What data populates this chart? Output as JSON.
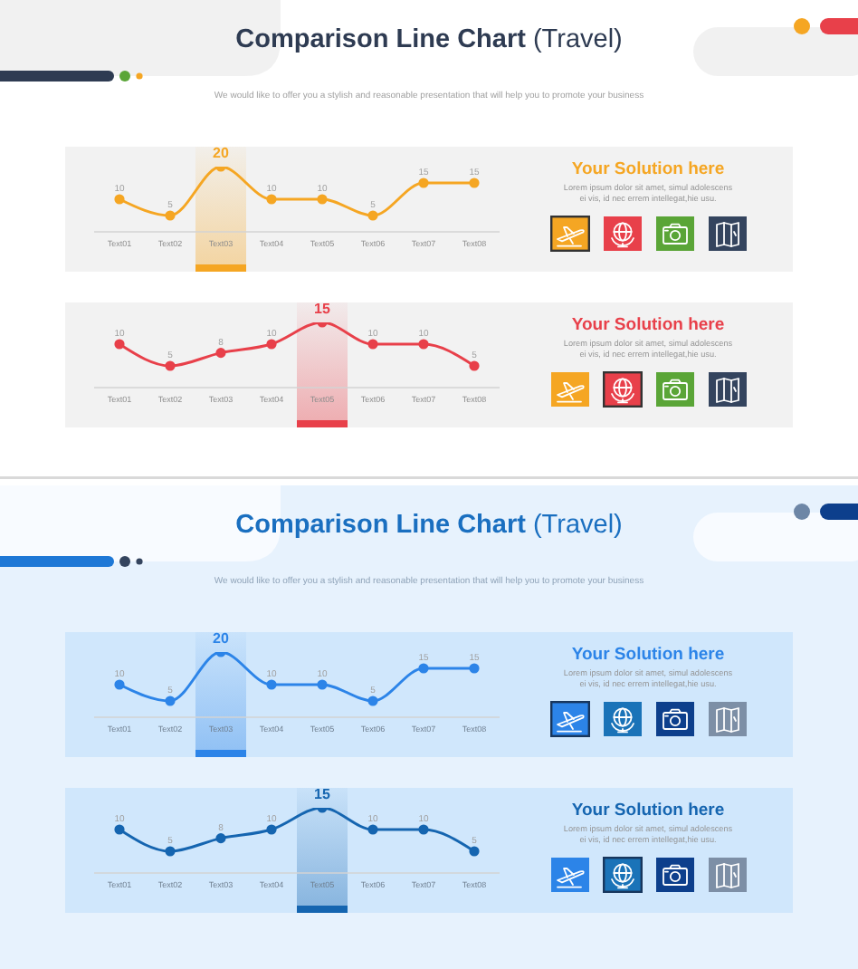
{
  "chart_data": [
    {
      "type": "line",
      "title": "Comparison Line Chart (Travel)",
      "subtitle": "We would like to offer you a stylish and reasonable presentation that will help you to promote your business",
      "categories": [
        "Text01",
        "Text02",
        "Text03",
        "Text04",
        "Text05",
        "Text06",
        "Text07",
        "Text08"
      ],
      "values": [
        10,
        5,
        20,
        10,
        10,
        5,
        15,
        15
      ],
      "color": "#f5a623",
      "marker": "circle",
      "line_style": "solid",
      "data_labels": true,
      "tick_labels": "x",
      "bands": [
        {
          "axis": "x",
          "from": "Text03",
          "to": "Text03",
          "color": "#f5a623"
        }
      ],
      "annotations": [
        "Your Solution here",
        "Lorem ipsum dolor sit amet, simul adolescens ei vis, id nec errem intellegat,hie usu."
      ]
    },
    {
      "type": "line",
      "categories": [
        "Text01",
        "Text02",
        "Text03",
        "Text04",
        "Text05",
        "Text06",
        "Text07",
        "Text08"
      ],
      "values": [
        10,
        5,
        8,
        10,
        15,
        10,
        10,
        5
      ],
      "color": "#e8404a",
      "marker": "circle",
      "line_style": "solid",
      "data_labels": true,
      "tick_labels": "x",
      "bands": [
        {
          "axis": "x",
          "from": "Text05",
          "to": "Text05",
          "color": "#e8404a"
        }
      ],
      "annotations": [
        "Your Solution here",
        "Lorem ipsum dolor sit amet, simul adolescens ei vis, id nec errem intellegat,hie usu."
      ]
    },
    {
      "type": "line",
      "title": "Comparison Line Chart (Travel)",
      "subtitle": "We would like to offer you a stylish and reasonable presentation that will help you to promote your business",
      "categories": [
        "Text01",
        "Text02",
        "Text03",
        "Text04",
        "Text05",
        "Text06",
        "Text07",
        "Text08"
      ],
      "values": [
        10,
        5,
        20,
        10,
        10,
        5,
        15,
        15
      ],
      "color": "#2c84e8",
      "marker": "circle",
      "line_style": "solid",
      "data_labels": true,
      "tick_labels": "x",
      "bands": [
        {
          "axis": "x",
          "from": "Text03",
          "to": "Text03",
          "color": "#2c84e8"
        }
      ],
      "annotations": [
        "Your Solution here",
        "Lorem ipsum dolor sit amet, simul adolescens ei vis, id nec errem intellegat,hie usu."
      ]
    },
    {
      "type": "line",
      "categories": [
        "Text01",
        "Text02",
        "Text03",
        "Text04",
        "Text05",
        "Text06",
        "Text07",
        "Text08"
      ],
      "values": [
        10,
        5,
        8,
        10,
        15,
        10,
        10,
        5
      ],
      "color": "#1565b0",
      "marker": "circle",
      "line_style": "solid",
      "data_labels": true,
      "tick_labels": "x",
      "bands": [
        {
          "axis": "x",
          "from": "Text05",
          "to": "Text05",
          "color": "#1565b0"
        }
      ],
      "annotations": [
        "Your Solution here",
        "Lorem ipsum dolor sit amet, simul adolescens ei vis, id nec errem intellegat,hie usu."
      ]
    }
  ]
}
